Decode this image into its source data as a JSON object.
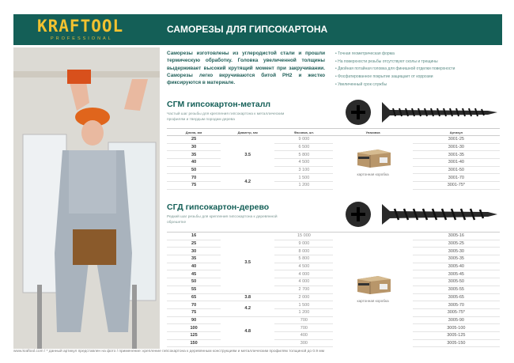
{
  "header": {
    "logo": "KRAFTOOL",
    "logo_sub": "PROFESSIONAL",
    "title": "САМОРЕЗЫ ДЛЯ ГИПСОКАРТОНА",
    "bg_color": "#145f57",
    "logo_color": "#f2c230"
  },
  "description": "Саморезы изготовлены из углеродистой стали и прошли термическую обработку. Головка увеличенной толщины выдерживает высокий крутящий момент при закручивании. Саморезы легко вкручиваются битой PH2 и жестко фиксируются в материале.",
  "features": [
    "Точная геометрическая форма",
    "На поверхности резьбы отсутствуют сколы и трещины",
    "Двойная потайная головка для финишной отделки поверхности",
    "Фосфатированное покрытие защищает от коррозии",
    "Увеличенный срок службы"
  ],
  "columns": [
    "Длина, мм",
    "Диаметр, мм",
    "Фасовка, шт.",
    "Упаковка",
    "Артикул"
  ],
  "packaging_label": "картонная коробка",
  "sections": [
    {
      "title": "СГМ гипсокартон-металл",
      "subtitle": "Частый шаг резьбы для крепления гипсокартона к металлическим профилям и твердым породам дерева",
      "rows": [
        [
          "25",
          "9 000",
          "3001-25"
        ],
        [
          "30",
          "6 500",
          "3001-30"
        ],
        [
          "35",
          "5 800",
          "3001-35"
        ],
        [
          "40",
          "4 500",
          "3001-40"
        ],
        [
          "50",
          "3 100",
          "3001-50"
        ],
        [
          "70",
          "1 500",
          "3001-70"
        ],
        [
          "75",
          "1 200",
          "3001-75*"
        ]
      ],
      "diameters": [
        {
          "value": "3.5",
          "rows": 5
        },
        {
          "value": "4.2",
          "rows": 2
        }
      ]
    },
    {
      "title": "СГД гипсокартон-дерево",
      "subtitle": "Редкий шаг резьбы для крепления гипсокартона к деревянной обрешетке",
      "rows": [
        [
          "16",
          "15 000",
          "3005-16"
        ],
        [
          "25",
          "9 000",
          "3005-25"
        ],
        [
          "30",
          "8 000",
          "3005-30"
        ],
        [
          "35",
          "5 800",
          "3005-35"
        ],
        [
          "40",
          "4 500",
          "3005-40"
        ],
        [
          "45",
          "4 000",
          "3005-45"
        ],
        [
          "50",
          "4 000",
          "3005-50"
        ],
        [
          "55",
          "2 700",
          "3005-55"
        ],
        [
          "65",
          "2 000",
          "3005-65"
        ],
        [
          "70",
          "1 500",
          "3005-70"
        ],
        [
          "75",
          "1 200",
          "3005-75*"
        ],
        [
          "90",
          "700",
          "3005-90"
        ],
        [
          "100",
          "700",
          "3005-100"
        ],
        [
          "125",
          "400",
          "3005-125"
        ],
        [
          "150",
          "300",
          "3005-150"
        ]
      ],
      "diameters": [
        {
          "value": "3.5",
          "rows": 8
        },
        {
          "value": "3.8",
          "rows": 1
        },
        {
          "value": "4.2",
          "rows": 2
        },
        {
          "value": "4.8",
          "rows": 4
        }
      ]
    }
  ],
  "footer": "www.kraftool.com  /  * данный артикул представлен на фото  /  применение: крепление гипсокартона к деревянным конструкциям и металлическим профилям толщиной до 0.9 мм"
}
